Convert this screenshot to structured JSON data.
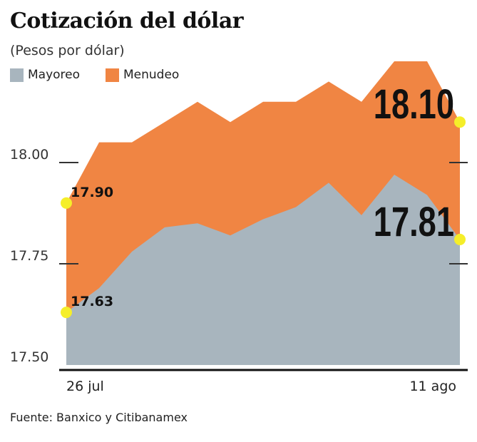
{
  "chart_data": {
    "type": "area",
    "title": "Cotización del dólar",
    "subtitle": "(Pesos por dólar)",
    "source": "Fuente: Banxico y Citibanamex",
    "x_tick_labels": [
      "26 jul",
      "11 ago"
    ],
    "y_ticks": [
      {
        "value": 17.5,
        "label": "17.50"
      },
      {
        "value": 17.75,
        "label": "17.75"
      },
      {
        "value": 18.0,
        "label": "18.00"
      }
    ],
    "ylim": [
      17.5,
      18.3
    ],
    "series": [
      {
        "name": "Menudeo",
        "color": "#f08543",
        "values": [
          17.9,
          18.05,
          18.05,
          18.1,
          18.15,
          18.1,
          18.15,
          18.15,
          18.2,
          18.15,
          18.25,
          18.25,
          18.1
        ],
        "start_label": "17.90",
        "end_label": "18.10"
      },
      {
        "name": "Mayoreo",
        "color": "#a8b5be",
        "values": [
          17.63,
          17.69,
          17.78,
          17.84,
          17.85,
          17.82,
          17.86,
          17.89,
          17.95,
          17.87,
          17.97,
          17.92,
          17.81
        ],
        "start_label": "17.63",
        "end_label": "17.81"
      }
    ],
    "marker_color": "#f5ee2a"
  }
}
